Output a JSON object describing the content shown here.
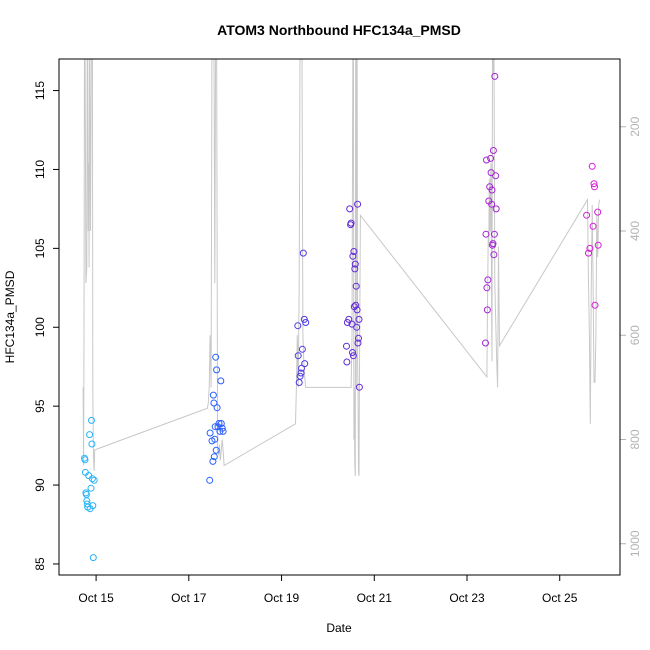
{
  "chart_data": {
    "type": "scatter",
    "title": "ATOM3 Northbound HFC134a_PMSD",
    "xlabel": "Date",
    "ylabel": "HFC134a_PMSD",
    "x_ticks": [
      "Oct 15",
      "Oct 17",
      "Oct 19",
      "Oct 21",
      "Oct 23",
      "Oct 25"
    ],
    "x_tick_days": [
      15,
      17,
      19,
      21,
      23,
      25
    ],
    "xlim_days": [
      14.2,
      26.3
    ],
    "y_ticks": [
      85,
      90,
      95,
      100,
      105,
      110,
      115
    ],
    "ylim": [
      84.3,
      117.0
    ],
    "right_axis": {
      "ticks": [
        200,
        400,
        600,
        800,
        1000
      ],
      "ylim": [
        70,
        1060
      ],
      "color": "#b3b3b3",
      "direction": "reversed"
    },
    "grid": false,
    "point_colors": [
      "#29b6f6",
      "#2962ff",
      "#5c2bd6",
      "#9c27d6",
      "#d81bd8"
    ],
    "line_color": "#c8c8c8",
    "series": [
      {
        "points": [
          [
            14.75,
            91.7
          ],
          [
            14.76,
            91.6
          ],
          [
            14.77,
            90.8
          ],
          [
            14.78,
            89.5
          ],
          [
            14.79,
            89.4
          ],
          [
            14.8,
            89.0
          ],
          [
            14.81,
            88.8
          ],
          [
            14.82,
            88.6
          ],
          [
            14.84,
            90.6
          ],
          [
            14.86,
            93.2
          ],
          [
            14.87,
            88.5
          ],
          [
            14.89,
            89.8
          ],
          [
            14.9,
            94.1
          ],
          [
            14.91,
            92.6
          ],
          [
            14.92,
            90.4
          ],
          [
            14.93,
            88.7
          ],
          [
            14.94,
            85.4
          ],
          [
            14.96,
            90.3
          ]
        ]
      },
      {
        "points": [
          [
            17.45,
            90.3
          ],
          [
            17.46,
            93.3
          ],
          [
            17.5,
            92.8
          ],
          [
            17.52,
            91.5
          ],
          [
            17.53,
            95.7
          ],
          [
            17.54,
            95.2
          ],
          [
            17.55,
            91.8
          ],
          [
            17.56,
            92.9
          ],
          [
            17.57,
            93.7
          ],
          [
            17.58,
            98.1
          ],
          [
            17.59,
            92.2
          ],
          [
            17.6,
            97.3
          ],
          [
            17.61,
            94.9
          ],
          [
            17.63,
            93.7
          ],
          [
            17.65,
            93.9
          ],
          [
            17.67,
            93.4
          ],
          [
            17.69,
            96.6
          ],
          [
            17.7,
            93.9
          ],
          [
            17.72,
            93.6
          ],
          [
            17.74,
            93.4
          ]
        ]
      },
      {
        "points": [
          [
            19.35,
            100.1
          ],
          [
            19.36,
            98.2
          ],
          [
            19.38,
            96.5
          ],
          [
            19.4,
            96.9
          ],
          [
            19.42,
            97.1
          ],
          [
            19.43,
            97.4
          ],
          [
            19.45,
            98.6
          ],
          [
            19.47,
            104.7
          ],
          [
            19.49,
            100.5
          ],
          [
            19.5,
            97.7
          ],
          [
            19.52,
            100.3
          ]
        ]
      },
      {
        "points": [
          [
            20.4,
            98.8
          ],
          [
            20.41,
            97.8
          ],
          [
            20.42,
            100.3
          ],
          [
            20.45,
            100.5
          ],
          [
            20.47,
            107.5
          ],
          [
            20.49,
            106.5
          ],
          [
            20.5,
            106.6
          ],
          [
            20.52,
            100.2
          ],
          [
            20.53,
            98.4
          ],
          [
            20.54,
            104.5
          ],
          [
            20.55,
            98.2
          ],
          [
            20.56,
            104.8
          ],
          [
            20.57,
            101.3
          ],
          [
            20.58,
            103.7
          ],
          [
            20.59,
            104.0
          ],
          [
            20.6,
            101.4
          ],
          [
            20.61,
            102.6
          ],
          [
            20.62,
            100.0
          ],
          [
            20.63,
            101.1
          ],
          [
            20.64,
            107.8
          ],
          [
            20.65,
            99.0
          ],
          [
            20.66,
            99.3
          ],
          [
            20.67,
            100.5
          ],
          [
            20.68,
            96.2
          ]
        ]
      },
      {
        "points": [
          [
            23.4,
            99.0
          ],
          [
            23.41,
            105.9
          ],
          [
            23.42,
            110.6
          ],
          [
            23.43,
            102.5
          ],
          [
            23.44,
            101.1
          ],
          [
            23.45,
            103.0
          ],
          [
            23.47,
            108.0
          ],
          [
            23.49,
            108.9
          ],
          [
            23.51,
            110.7
          ],
          [
            23.52,
            109.8
          ],
          [
            23.53,
            107.8
          ],
          [
            23.54,
            108.7
          ],
          [
            23.55,
            105.2
          ],
          [
            23.56,
            105.3
          ],
          [
            23.57,
            111.2
          ],
          [
            23.58,
            104.6
          ],
          [
            23.59,
            105.9
          ],
          [
            23.6,
            115.9
          ],
          [
            23.62,
            109.6
          ],
          [
            23.63,
            107.5
          ]
        ]
      },
      {
        "points": [
          [
            25.58,
            107.1
          ],
          [
            25.62,
            104.7
          ],
          [
            25.65,
            105.0
          ],
          [
            25.7,
            110.2
          ],
          [
            25.72,
            106.4
          ],
          [
            25.74,
            109.1
          ],
          [
            25.75,
            108.9
          ],
          [
            25.76,
            101.4
          ],
          [
            25.82,
            107.3
          ],
          [
            25.83,
            105.2
          ]
        ]
      }
    ],
    "secondary_line": {
      "axis": "right",
      "points": [
        [
          14.72,
          700
        ],
        [
          14.73,
          850
        ],
        [
          14.74,
          600
        ],
        [
          14.75,
          0
        ],
        [
          14.76,
          0
        ],
        [
          14.78,
          500
        ],
        [
          14.8,
          470
        ],
        [
          14.81,
          0
        ],
        [
          14.82,
          0
        ],
        [
          14.83,
          400
        ],
        [
          14.84,
          270
        ],
        [
          14.85,
          470
        ],
        [
          14.86,
          0
        ],
        [
          14.88,
          400
        ],
        [
          14.9,
          0
        ],
        [
          14.92,
          0
        ],
        [
          14.93,
          700
        ],
        [
          14.94,
          810
        ],
        [
          14.95,
          850
        ],
        [
          14.96,
          860
        ],
        [
          14.97,
          820
        ],
        [
          17.4,
          740
        ],
        [
          17.42,
          730
        ],
        [
          17.44,
          700
        ],
        [
          17.46,
          600
        ],
        [
          17.48,
          700
        ],
        [
          17.5,
          0
        ],
        [
          17.52,
          0
        ],
        [
          17.54,
          0
        ],
        [
          17.56,
          500
        ],
        [
          17.58,
          0
        ],
        [
          17.6,
          0
        ],
        [
          17.62,
          820
        ],
        [
          17.64,
          830
        ],
        [
          17.66,
          810
        ],
        [
          17.68,
          840
        ],
        [
          17.7,
          820
        ],
        [
          17.72,
          800
        ],
        [
          17.74,
          820
        ],
        [
          17.76,
          850
        ],
        [
          19.3,
          770
        ],
        [
          19.32,
          700
        ],
        [
          19.34,
          600
        ],
        [
          19.36,
          700
        ],
        [
          19.38,
          500
        ],
        [
          19.4,
          0
        ],
        [
          19.42,
          0
        ],
        [
          19.44,
          0
        ],
        [
          19.46,
          600
        ],
        [
          19.48,
          650
        ],
        [
          19.5,
          680
        ],
        [
          19.52,
          700
        ],
        [
          20.5,
          700
        ],
        [
          20.52,
          600
        ],
        [
          20.54,
          0
        ],
        [
          20.55,
          0
        ],
        [
          20.56,
          800
        ],
        [
          20.57,
          700
        ],
        [
          20.58,
          850
        ],
        [
          20.59,
          870
        ],
        [
          20.6,
          0
        ],
        [
          20.61,
          700
        ],
        [
          20.62,
          0
        ],
        [
          20.63,
          0
        ],
        [
          20.64,
          650
        ],
        [
          20.65,
          700
        ],
        [
          20.66,
          860
        ],
        [
          20.67,
          870
        ],
        [
          20.68,
          700
        ],
        [
          20.7,
          370
        ],
        [
          23.43,
          680
        ],
        [
          23.44,
          560
        ],
        [
          23.45,
          470
        ],
        [
          23.46,
          400
        ],
        [
          23.47,
          430
        ],
        [
          23.48,
          300
        ],
        [
          23.49,
          400
        ],
        [
          23.5,
          400
        ],
        [
          23.51,
          290
        ],
        [
          23.52,
          270
        ],
        [
          23.53,
          560
        ],
        [
          23.54,
          650
        ],
        [
          23.55,
          0
        ],
        [
          23.56,
          100
        ],
        [
          23.57,
          0
        ],
        [
          23.58,
          0
        ],
        [
          23.6,
          500
        ],
        [
          23.62,
          570
        ],
        [
          23.64,
          650
        ],
        [
          23.66,
          700
        ],
        [
          23.68,
          430
        ],
        [
          23.7,
          620
        ],
        [
          25.6,
          340
        ],
        [
          25.62,
          500
        ],
        [
          25.64,
          600
        ],
        [
          25.66,
          770
        ],
        [
          25.68,
          500
        ],
        [
          25.7,
          350
        ],
        [
          25.72,
          500
        ],
        [
          25.74,
          690
        ],
        [
          25.76,
          690
        ],
        [
          25.78,
          600
        ],
        [
          25.8,
          370
        ],
        [
          25.82,
          450
        ],
        [
          25.84,
          350
        ],
        [
          25.86,
          340
        ]
      ]
    }
  }
}
